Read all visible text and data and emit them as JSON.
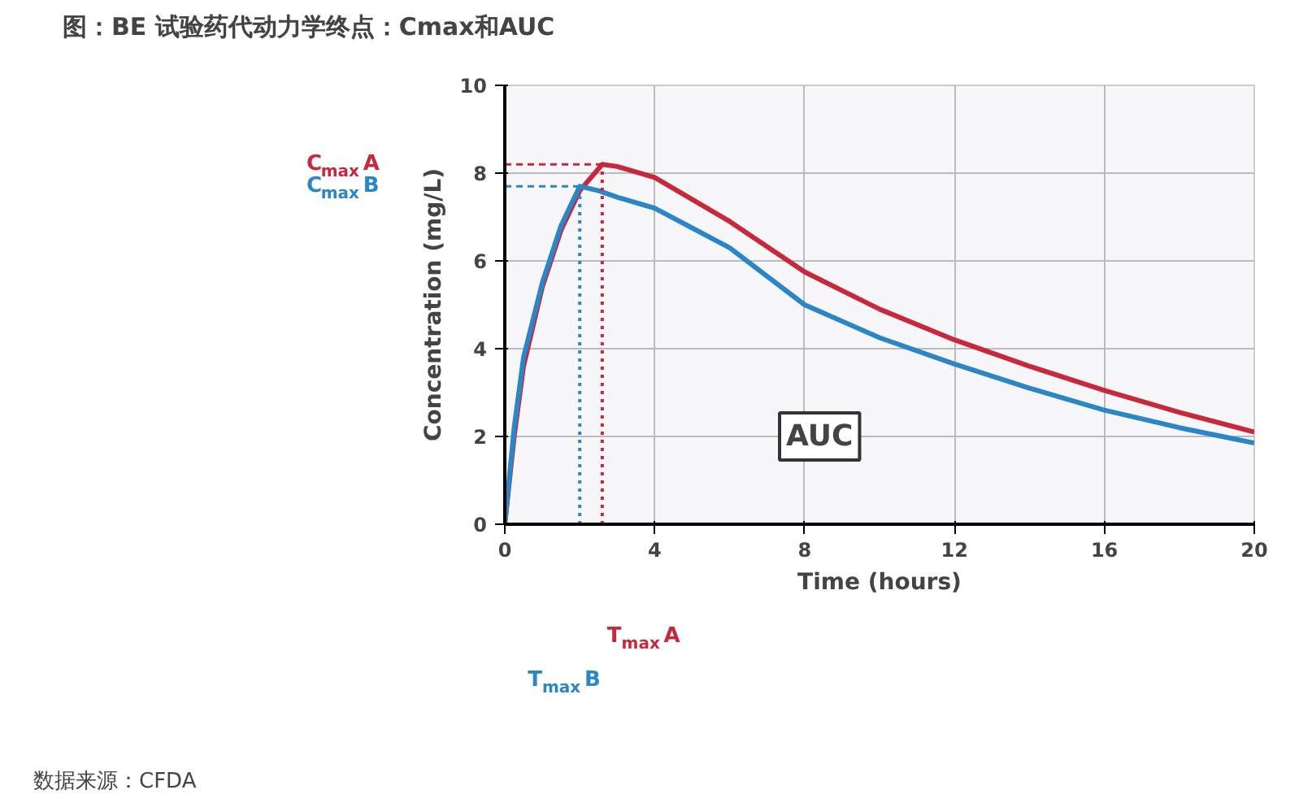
{
  "chart_data": {
    "type": "line",
    "title": "图：BE 试验药代动力学终点：Cmax和AUC",
    "xlabel": "Time (hours)",
    "ylabel": "Concentration (mg/L)",
    "series": [
      {
        "name": null,
        "color": "#c8283c",
        "x": [
          0,
          0.25,
          0.5,
          1,
          1.5,
          2,
          2.6,
          3,
          4,
          5,
          6,
          8,
          10,
          12,
          14,
          16,
          18,
          20
        ],
        "values": [
          0,
          2.0,
          3.6,
          5.4,
          6.7,
          7.6,
          8.2,
          8.15,
          7.9,
          7.4,
          6.9,
          5.75,
          4.9,
          4.2,
          3.6,
          3.05,
          2.55,
          2.1
        ]
      },
      {
        "name": null,
        "color": "#2a86c6",
        "x": [
          0,
          0.25,
          0.5,
          1,
          1.5,
          2,
          2.5,
          3,
          4,
          5,
          6,
          8,
          10,
          12,
          14,
          16,
          18,
          20
        ],
        "values": [
          0,
          2.2,
          3.8,
          5.5,
          6.8,
          7.7,
          7.6,
          7.45,
          7.2,
          6.75,
          6.3,
          5.0,
          4.25,
          3.65,
          3.1,
          2.6,
          2.2,
          1.85
        ]
      }
    ],
    "xlim": [
      0,
      20
    ],
    "ylim": [
      0,
      10
    ],
    "xticks": [
      0,
      4,
      8,
      12,
      16,
      20
    ],
    "yticks": [
      0,
      2,
      4,
      6,
      8,
      10
    ],
    "grid": true,
    "line_style": "solid",
    "marker": "none",
    "ref_lines": [
      {
        "axis": "y",
        "value": 8.2,
        "label": "C$_{max}$ A",
        "color": "#c8283c",
        "line_style": "dashed"
      },
      {
        "axis": "y",
        "value": 7.7,
        "label": "C$_{max}$ B",
        "color": "#2a86c6",
        "line_style": "dashed"
      },
      {
        "axis": "x",
        "value": 2.6,
        "label": "T$_{max}$ A",
        "color": "#c8283c",
        "line_style": "dotted"
      },
      {
        "axis": "x",
        "value": 2.0,
        "label": "T$_{max}$ B",
        "color": "#2a86c6",
        "line_style": "dotted"
      }
    ],
    "annotations": [
      "AUC",
      "数据来源：CFDA"
    ]
  }
}
